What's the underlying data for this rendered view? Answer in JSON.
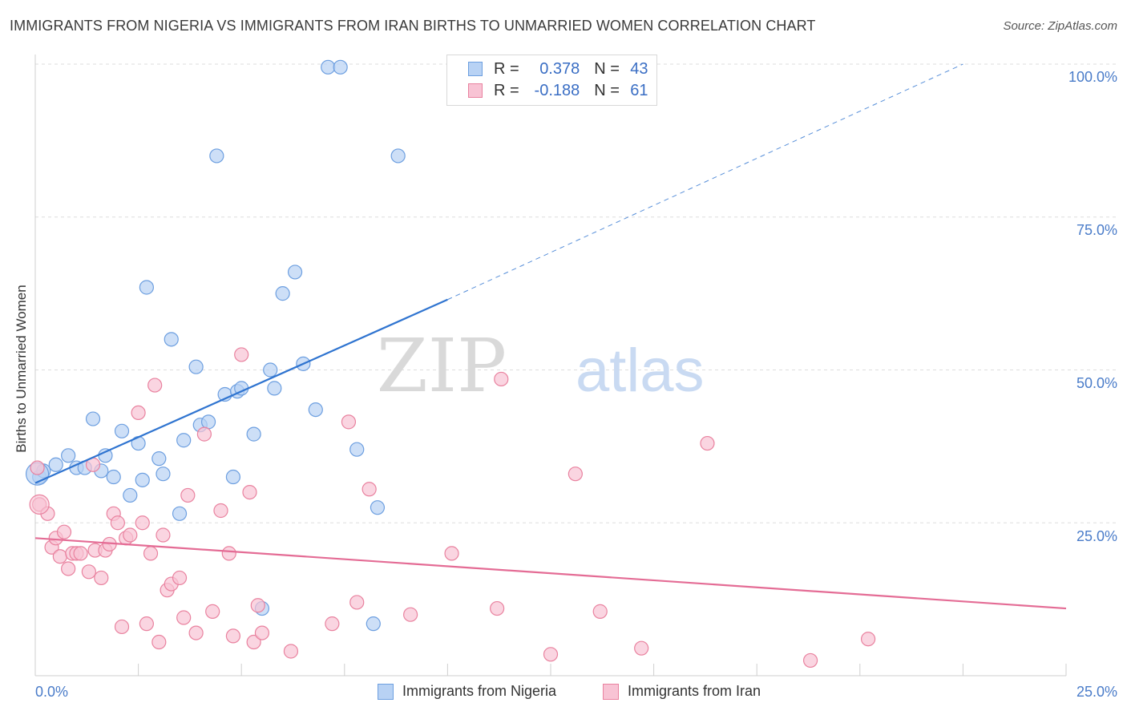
{
  "title": "IMMIGRANTS FROM NIGERIA VS IMMIGRANTS FROM IRAN BIRTHS TO UNMARRIED WOMEN CORRELATION CHART",
  "source": "Source: ZipAtlas.com",
  "watermark": {
    "zip": "ZIP",
    "atlas": "atlas"
  },
  "legend": {
    "nigeria": {
      "r_label": "R =",
      "r_value": "0.378",
      "n_label": "N =",
      "n_value": "43"
    },
    "iran": {
      "r_label": "R =",
      "r_value": "-0.188",
      "n_label": "N =",
      "n_value": "61"
    }
  },
  "colors": {
    "nigeria_fill": "#b8d2f4",
    "nigeria_stroke": "#6d9fe0",
    "nigeria_line": "#2f74d0",
    "iran_fill": "#f8c3d4",
    "iran_stroke": "#e9829f",
    "iran_line": "#e46c95",
    "tick_text": "#4a7cc9",
    "grid": "#dddddd"
  },
  "chart_data": {
    "type": "scatter",
    "title": "IMMIGRANTS FROM NIGERIA VS IMMIGRANTS FROM IRAN BIRTHS TO UNMARRIED WOMEN CORRELATION CHART",
    "xlabel": "",
    "ylabel": "Births to Unmarried Women",
    "xlim": [
      0,
      25
    ],
    "ylim": [
      0,
      100
    ],
    "x_tick_labels": [
      "0.0%",
      "25.0%"
    ],
    "y_tick_labels": [
      "100.0%",
      "75.0%",
      "50.0%",
      "25.0%"
    ],
    "y_ticks": [
      100,
      75,
      50,
      25
    ],
    "grid": true,
    "legend_position": "top-center",
    "series": [
      {
        "name": "Immigrants from Nigeria",
        "r": 0.378,
        "n": 43,
        "trend": {
          "x": [
            0.0,
            10.0
          ],
          "y": [
            31.5,
            61.5
          ],
          "extended_to": [
            22.5,
            100.0
          ]
        },
        "points": [
          [
            0.1,
            32.5
          ],
          [
            0.2,
            33.5
          ],
          [
            0.5,
            34.5
          ],
          [
            0.8,
            36.0
          ],
          [
            1.0,
            34.0
          ],
          [
            1.2,
            34.0
          ],
          [
            1.4,
            42.0
          ],
          [
            1.6,
            33.5
          ],
          [
            1.7,
            36.0
          ],
          [
            1.9,
            32.5
          ],
          [
            2.1,
            40.0
          ],
          [
            2.3,
            29.5
          ],
          [
            2.5,
            38.0
          ],
          [
            2.6,
            32.0
          ],
          [
            2.7,
            63.5
          ],
          [
            3.0,
            35.5
          ],
          [
            3.1,
            33.0
          ],
          [
            3.3,
            55.0
          ],
          [
            3.5,
            26.5
          ],
          [
            3.6,
            38.5
          ],
          [
            3.9,
            50.5
          ],
          [
            4.0,
            41.0
          ],
          [
            4.2,
            41.5
          ],
          [
            4.4,
            85.0
          ],
          [
            4.6,
            46.0
          ],
          [
            4.8,
            32.5
          ],
          [
            4.9,
            46.5
          ],
          [
            5.0,
            47.0
          ],
          [
            5.3,
            39.5
          ],
          [
            5.5,
            11.0
          ],
          [
            5.7,
            50.0
          ],
          [
            5.8,
            47.0
          ],
          [
            6.0,
            62.5
          ],
          [
            6.3,
            66.0
          ],
          [
            6.5,
            51.0
          ],
          [
            6.8,
            43.5
          ],
          [
            7.1,
            99.5
          ],
          [
            7.4,
            99.5
          ],
          [
            7.8,
            37.0
          ],
          [
            8.2,
            8.5
          ],
          [
            8.3,
            27.5
          ],
          [
            8.8,
            85.0
          ],
          [
            0.05,
            33.0
          ]
        ]
      },
      {
        "name": "Immigrants from Iran",
        "r": -0.188,
        "n": 61,
        "trend": {
          "x": [
            0.0,
            25.0
          ],
          "y": [
            22.5,
            11.0
          ]
        },
        "points": [
          [
            0.05,
            34.0
          ],
          [
            0.1,
            28.0
          ],
          [
            0.3,
            26.5
          ],
          [
            0.4,
            21.0
          ],
          [
            0.5,
            22.5
          ],
          [
            0.6,
            19.5
          ],
          [
            0.7,
            23.5
          ],
          [
            0.8,
            17.5
          ],
          [
            0.9,
            20.0
          ],
          [
            1.0,
            20.0
          ],
          [
            1.1,
            20.0
          ],
          [
            1.3,
            17.0
          ],
          [
            1.4,
            34.5
          ],
          [
            1.45,
            20.5
          ],
          [
            1.6,
            16.0
          ],
          [
            1.7,
            20.5
          ],
          [
            1.8,
            21.5
          ],
          [
            1.9,
            26.5
          ],
          [
            2.0,
            25.0
          ],
          [
            2.1,
            8.0
          ],
          [
            2.2,
            22.5
          ],
          [
            2.3,
            23.0
          ],
          [
            2.5,
            43.0
          ],
          [
            2.6,
            25.0
          ],
          [
            2.7,
            8.5
          ],
          [
            2.8,
            20.0
          ],
          [
            2.9,
            47.5
          ],
          [
            3.0,
            5.5
          ],
          [
            3.1,
            23.0
          ],
          [
            3.2,
            14.0
          ],
          [
            3.3,
            15.0
          ],
          [
            3.5,
            16.0
          ],
          [
            3.6,
            9.5
          ],
          [
            3.7,
            29.5
          ],
          [
            3.9,
            7.0
          ],
          [
            4.1,
            39.5
          ],
          [
            4.3,
            10.5
          ],
          [
            4.5,
            27.0
          ],
          [
            4.7,
            20.0
          ],
          [
            4.8,
            6.5
          ],
          [
            5.0,
            52.5
          ],
          [
            5.2,
            30.0
          ],
          [
            5.3,
            5.5
          ],
          [
            5.4,
            11.5
          ],
          [
            5.5,
            7.0
          ],
          [
            6.2,
            4.0
          ],
          [
            7.2,
            8.5
          ],
          [
            7.6,
            41.5
          ],
          [
            7.8,
            12.0
          ],
          [
            8.1,
            30.5
          ],
          [
            9.1,
            10.0
          ],
          [
            10.1,
            20.0
          ],
          [
            11.2,
            11.0
          ],
          [
            11.3,
            48.5
          ],
          [
            12.5,
            3.5
          ],
          [
            13.1,
            33.0
          ],
          [
            13.7,
            10.5
          ],
          [
            14.7,
            4.5
          ],
          [
            16.3,
            38.0
          ],
          [
            18.8,
            2.5
          ],
          [
            20.2,
            6.0
          ]
        ]
      }
    ]
  }
}
